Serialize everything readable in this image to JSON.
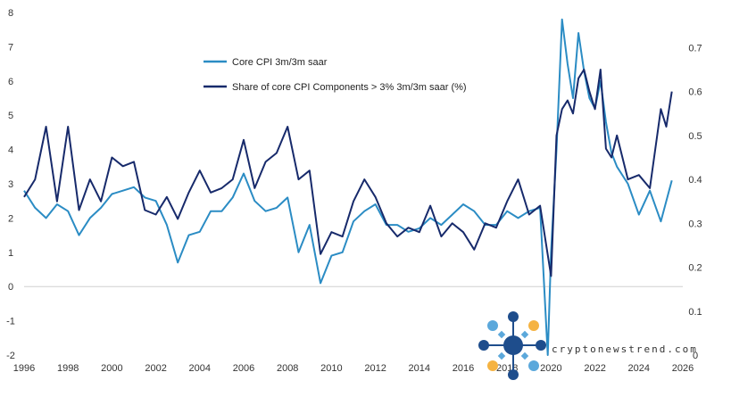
{
  "chart_data": {
    "type": "line",
    "title": "",
    "xlabel": "",
    "ylabel": "",
    "x_ticks": [
      "1996",
      "1998",
      "2000",
      "2002",
      "2004",
      "2006",
      "2008",
      "2010",
      "2012",
      "2014",
      "2016",
      "2018",
      "2020",
      "2022",
      "2024",
      "2026"
    ],
    "xlim": [
      1996,
      2026
    ],
    "y_left": {
      "lim": [
        -2,
        8
      ],
      "ticks": [
        "-2",
        "-1",
        "0",
        "1",
        "2",
        "3",
        "4",
        "5",
        "6",
        "7",
        "8"
      ]
    },
    "y_right": {
      "lim": [
        0,
        0.78
      ],
      "ticks": [
        "0",
        "0.1",
        "0.2",
        "0.3",
        "0.4",
        "0.5",
        "0.6",
        "0.7"
      ]
    },
    "legend_position": "top-center",
    "series": [
      {
        "name": "Core CPI 3m/3m saar",
        "axis": "left",
        "color": "#2b8cc4",
        "x": [
          1996.0,
          1996.5,
          1997.0,
          1997.5,
          1998.0,
          1998.5,
          1999.0,
          1999.5,
          2000.0,
          2000.5,
          2001.0,
          2001.5,
          2002.0,
          2002.5,
          2003.0,
          2003.5,
          2004.0,
          2004.5,
          2005.0,
          2005.5,
          2006.0,
          2006.5,
          2007.0,
          2007.5,
          2008.0,
          2008.5,
          2009.0,
          2009.5,
          2010.0,
          2010.5,
          2011.0,
          2011.5,
          2012.0,
          2012.5,
          2013.0,
          2013.5,
          2014.0,
          2014.5,
          2015.0,
          2015.5,
          2016.0,
          2016.5,
          2017.0,
          2017.5,
          2018.0,
          2018.5,
          2019.0,
          2019.5,
          2019.85,
          2020.0,
          2020.25,
          2020.5,
          2020.75,
          2021.0,
          2021.25,
          2021.5,
          2021.75,
          2022.0,
          2022.25,
          2022.5,
          2022.75,
          2023.0,
          2023.5,
          2024.0,
          2024.5,
          2025.0,
          2025.5
        ],
        "y": [
          2.8,
          2.3,
          2.0,
          2.4,
          2.2,
          1.5,
          2.0,
          2.3,
          2.7,
          2.8,
          2.9,
          2.6,
          2.5,
          1.8,
          0.7,
          1.5,
          1.6,
          2.2,
          2.2,
          2.6,
          3.3,
          2.5,
          2.2,
          2.3,
          2.6,
          1.0,
          1.8,
          0.1,
          0.9,
          1.0,
          1.9,
          2.2,
          2.4,
          1.8,
          1.8,
          1.6,
          1.7,
          2.0,
          1.8,
          2.1,
          2.4,
          2.2,
          1.8,
          1.8,
          2.2,
          2.0,
          2.2,
          2.3,
          -2.0,
          1.0,
          4.0,
          7.8,
          6.5,
          5.5,
          7.4,
          6.3,
          5.5,
          5.2,
          6.0,
          4.8,
          3.9,
          3.5,
          3.0,
          2.1,
          2.8,
          1.9,
          3.1
        ]
      },
      {
        "name": "Share of core CPI Components > 3% 3m/3m saar (%)",
        "axis": "right",
        "color": "#172a6b",
        "x": [
          1996.0,
          1996.5,
          1997.0,
          1997.5,
          1998.0,
          1998.5,
          1999.0,
          1999.5,
          2000.0,
          2000.5,
          2001.0,
          2001.5,
          2002.0,
          2002.5,
          2003.0,
          2003.5,
          2004.0,
          2004.5,
          2005.0,
          2005.5,
          2006.0,
          2006.5,
          2007.0,
          2007.5,
          2008.0,
          2008.5,
          2009.0,
          2009.5,
          2010.0,
          2010.5,
          2011.0,
          2011.5,
          2012.0,
          2012.5,
          2013.0,
          2013.5,
          2014.0,
          2014.5,
          2015.0,
          2015.5,
          2016.0,
          2016.5,
          2017.0,
          2017.5,
          2018.0,
          2018.5,
          2019.0,
          2019.5,
          2020.0,
          2020.25,
          2020.5,
          2020.75,
          2021.0,
          2021.25,
          2021.5,
          2021.75,
          2022.0,
          2022.25,
          2022.5,
          2022.75,
          2023.0,
          2023.5,
          2024.0,
          2024.5,
          2025.0,
          2025.25,
          2025.5
        ],
        "y": [
          0.36,
          0.4,
          0.52,
          0.35,
          0.52,
          0.33,
          0.4,
          0.35,
          0.45,
          0.43,
          0.44,
          0.33,
          0.32,
          0.36,
          0.31,
          0.37,
          0.42,
          0.37,
          0.38,
          0.4,
          0.49,
          0.38,
          0.44,
          0.46,
          0.52,
          0.4,
          0.42,
          0.23,
          0.28,
          0.27,
          0.35,
          0.4,
          0.36,
          0.3,
          0.27,
          0.29,
          0.28,
          0.34,
          0.27,
          0.3,
          0.28,
          0.24,
          0.3,
          0.29,
          0.35,
          0.4,
          0.32,
          0.34,
          0.18,
          0.5,
          0.56,
          0.58,
          0.55,
          0.63,
          0.65,
          0.6,
          0.56,
          0.65,
          0.47,
          0.45,
          0.5,
          0.4,
          0.41,
          0.38,
          0.56,
          0.52,
          0.6
        ]
      }
    ]
  },
  "watermark": {
    "text": "cryptonewstrend.com",
    "colors": {
      "dark": "#1e4d8c",
      "light": "#5ba8db",
      "accent": "#f5b342"
    }
  }
}
